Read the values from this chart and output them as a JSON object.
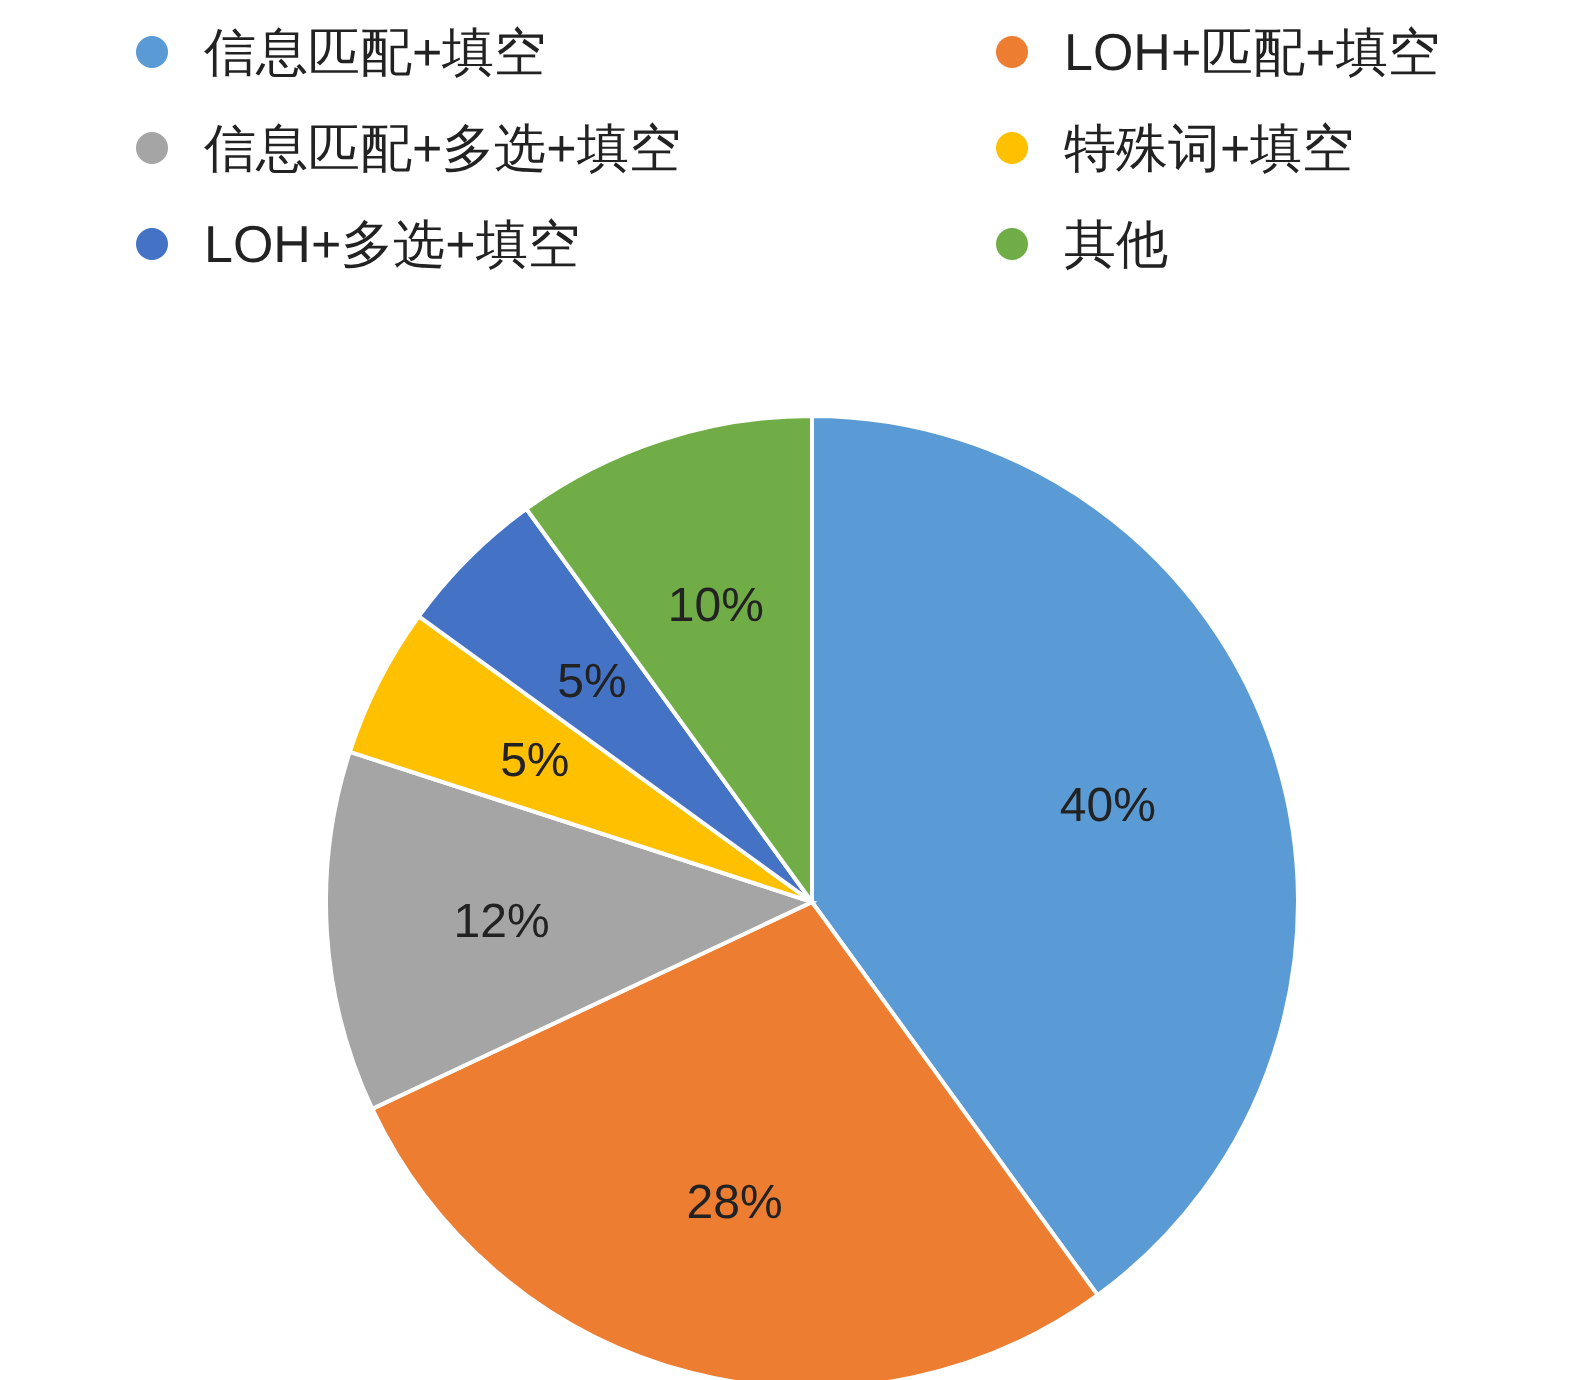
{
  "chart_data": {
    "type": "pie",
    "categories": [
      "信息匹配+填空",
      "LOH+匹配+填空",
      "信息匹配+多选+填空",
      "特殊词+填空",
      "LOH+多选+填空",
      "其他"
    ],
    "values": [
      40,
      28,
      12,
      5,
      5,
      10
    ],
    "colors": [
      "#5b9bd5",
      "#ed7d31",
      "#a5a5a5",
      "#ffc000",
      "#4472c4",
      "#70ad47"
    ],
    "value_labels": [
      "40%",
      "28%",
      "12%",
      "5%",
      "5%",
      "10%"
    ],
    "legend": "top"
  }
}
